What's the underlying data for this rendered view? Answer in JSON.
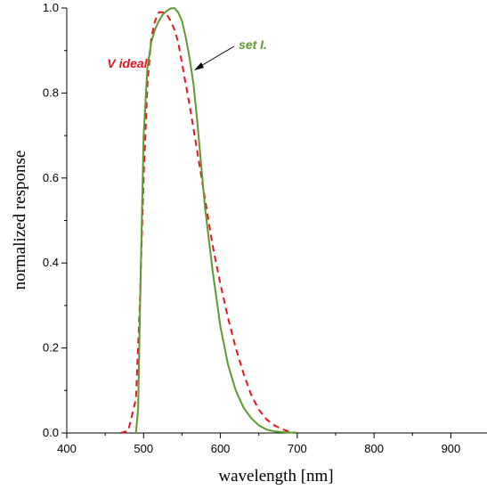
{
  "chart_data": {
    "type": "line",
    "xlabel": "wavelength [nm]",
    "ylabel": "normalized response",
    "xlim": [
      400,
      947
    ],
    "ylim": [
      0,
      1.0
    ],
    "x_ticks": [
      "400",
      "500",
      "600",
      "700",
      "800",
      "900"
    ],
    "y_ticks": [
      "0.0",
      "0.2",
      "0.4",
      "0.6",
      "0.8",
      "1.0"
    ],
    "grid": false,
    "series": [
      {
        "name": "V ideal",
        "color": "#e8141e",
        "style": "dashed",
        "x": [
          470,
          480,
          490,
          495,
          500,
          505,
          510,
          515,
          520,
          525,
          530,
          535,
          540,
          545,
          550,
          555,
          560,
          570,
          580,
          590,
          600,
          610,
          620,
          630,
          640,
          650,
          660,
          670,
          680,
          690,
          700
        ],
        "y": [
          0.0,
          0.005,
          0.08,
          0.3,
          0.6,
          0.82,
          0.93,
          0.97,
          0.99,
          0.99,
          0.985,
          0.97,
          0.95,
          0.92,
          0.87,
          0.82,
          0.77,
          0.66,
          0.55,
          0.44,
          0.35,
          0.27,
          0.2,
          0.14,
          0.09,
          0.055,
          0.032,
          0.018,
          0.009,
          0.003,
          0.0
        ]
      },
      {
        "name": "set I.",
        "color": "#5f9a30",
        "style": "solid",
        "x": [
          490,
          493,
          496,
          500,
          505,
          510,
          515,
          520,
          525,
          530,
          535,
          540,
          545,
          550,
          555,
          560,
          565,
          570,
          575,
          580,
          590,
          600,
          610,
          620,
          630,
          640,
          650,
          660,
          670,
          680,
          690,
          700
        ],
        "y": [
          0.0,
          0.06,
          0.35,
          0.7,
          0.86,
          0.92,
          0.95,
          0.97,
          0.985,
          0.993,
          0.999,
          1.0,
          0.99,
          0.97,
          0.93,
          0.88,
          0.82,
          0.73,
          0.63,
          0.53,
          0.38,
          0.25,
          0.16,
          0.1,
          0.06,
          0.035,
          0.018,
          0.008,
          0.004,
          0.002,
          0.001,
          0.0
        ]
      }
    ],
    "annotations": [
      {
        "text": "V ideal",
        "color": "#e8141e"
      },
      {
        "text": "set I.",
        "color": "#5f9a30"
      }
    ]
  }
}
